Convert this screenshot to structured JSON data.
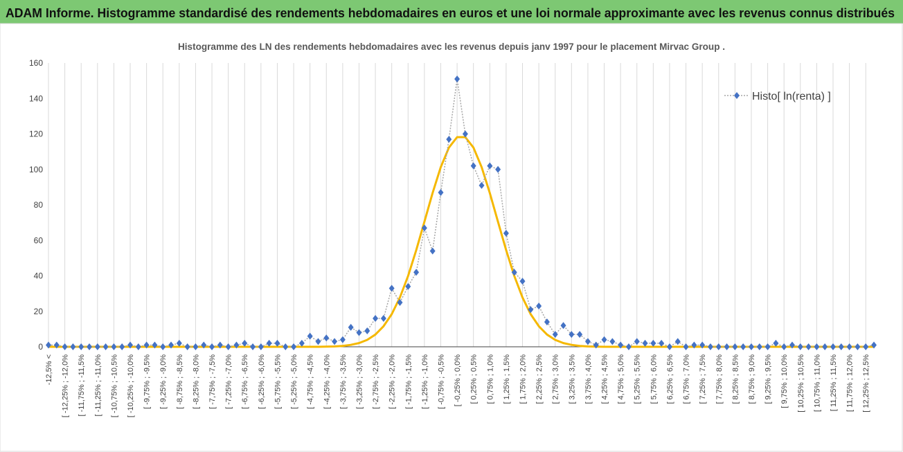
{
  "header": {
    "title": "ADAM Informe. Histogramme standardisé des rendements hebdomadaires en euros et une loi normale approximante avec les revenus connus distribués"
  },
  "chart_data": {
    "type": "line",
    "title": "Histogramme  des LN des rendements hebdomadaires avec les revenus depuis janv 1997 pour le placement Mirvac Group .",
    "categories": [
      "-12,5% <",
      null,
      "[ -12,25% ; -12,0%",
      null,
      "[ -11,75% ; -11,5%",
      null,
      "[ -11,25% ; -11,0%",
      null,
      "[ -10,75% ; -10,5%",
      null,
      "[ -10,25% ; -10,0%",
      null,
      "[ -9,75% ; -9,5%",
      null,
      "[ -9,25% ; -9,0%",
      null,
      "[ -8,75% ; -8,5%",
      null,
      "[ -8,25% ; -8,0%",
      null,
      "[ -7,75% ; -7,5%",
      null,
      "[ -7,25% ; -7,0%",
      null,
      "[ -6,75% ; -6,5%",
      null,
      "[ -6,25% ; -6,0%",
      null,
      "[ -5,75% ; -5,5%",
      null,
      "[ -5,25% ; -5,0%",
      null,
      "[ -4,75% ; -4,5%",
      null,
      "[ -4,25% ; -4,0%",
      null,
      "[ -3,75% ; -3,5%",
      null,
      "[ -3,25% ; -3,0%",
      null,
      "[ -2,75% ; -2,5%",
      null,
      "[ -2,25% ; -2,0%",
      null,
      "[ -1,75% ; -1,5%",
      null,
      "[ -1,25% ; -1,0%",
      null,
      "[ -0,75% ; -0,5%",
      null,
      "[ -0,25% ; 0,0%",
      null,
      "[ 0,25% ; 0,5%",
      null,
      "[ 0,75% ; 1,0%",
      null,
      "[ 1,25% ; 1,5%",
      null,
      "[ 1,75% ; 2,0%",
      null,
      "[ 2,25% ; 2,5%",
      null,
      "[ 2,75% ; 3,0%",
      null,
      "[ 3,25% ; 3,5%",
      null,
      "[ 3,75% ; 4,0%",
      null,
      "[ 4,25% ; 4,5%",
      null,
      "[ 4,75% ; 5,0%",
      null,
      "[ 5,25% ; 5,5%",
      null,
      "[ 5,75% ; 6,0%",
      null,
      "[ 6,25% ; 6,5%",
      null,
      "[ 6,75% ; 7,0%",
      null,
      "[ 7,25% ; 7,5%",
      null,
      "[ 7,75% ; 8,0%",
      null,
      "[ 8,25% ; 8,5%",
      null,
      "[ 8,75% ; 9,0%",
      null,
      "[ 9,25% ; 9,5%",
      null,
      "[ 9,75% ; 10,0%",
      null,
      "[ 10,25% ; 10,5%",
      null,
      "[ 10,75% ; 11,0%",
      null,
      "[ 11,25% ; 11,5%",
      null,
      "[ 11,75% ; 12,0%",
      null,
      "[ 12,25% ; 12,5%",
      null
    ],
    "series": [
      {
        "name": "Histo[ ln(renta) ]",
        "color": "#4472c4",
        "line_color": "#a5a5a5",
        "marker": "diamond",
        "values": [
          1,
          1,
          0,
          0,
          0,
          0,
          0,
          0,
          0,
          0,
          1,
          0,
          1,
          1,
          0,
          1,
          2,
          0,
          0,
          1,
          0,
          1,
          0,
          1,
          2,
          0,
          0,
          2,
          2,
          0,
          0,
          2,
          6,
          3,
          5,
          3,
          4,
          11,
          8,
          9,
          16,
          16,
          33,
          25,
          34,
          42,
          67,
          54,
          87,
          117,
          151,
          120,
          102,
          91,
          102,
          100,
          64,
          42,
          37,
          21,
          23,
          14,
          7,
          12,
          7,
          7,
          3,
          1,
          4,
          3,
          1,
          0,
          3,
          2,
          2,
          2,
          0,
          3,
          0,
          1,
          1,
          0,
          0,
          0,
          0,
          0,
          0,
          0,
          0,
          2,
          0,
          1,
          0,
          0,
          0,
          0,
          0,
          0,
          0,
          0,
          0,
          1
        ]
      },
      {
        "color": "#f5b800",
        "values": [
          0,
          0,
          0,
          0,
          0,
          0,
          0,
          0,
          0,
          0,
          0,
          0,
          0,
          0,
          0,
          0,
          0,
          0,
          0,
          0,
          0,
          0,
          0,
          0,
          0,
          0,
          0,
          0,
          0,
          0,
          0,
          0,
          0,
          0,
          0.1,
          0.2,
          0.5,
          1.1,
          2.1,
          3.9,
          6.9,
          11.6,
          18.4,
          27.8,
          39.9,
          54.5,
          70.5,
          86.7,
          101.3,
          112.3,
          118.2,
          118.2,
          112.3,
          101.3,
          86.7,
          70.5,
          54.5,
          39.9,
          27.8,
          18.4,
          11.6,
          6.9,
          3.9,
          2.1,
          1.1,
          0.5,
          0.2,
          0.1,
          0,
          0,
          0,
          0,
          0,
          0,
          0,
          0,
          0,
          0,
          0,
          0,
          0,
          0,
          0,
          0,
          0,
          0,
          0,
          0,
          0,
          0,
          0,
          0,
          0,
          0,
          0,
          0,
          0,
          0,
          0,
          0,
          0,
          0
        ]
      }
    ],
    "ylim": [
      0,
      160
    ],
    "yticks": [
      0,
      20,
      40,
      60,
      80,
      100,
      120,
      140,
      160
    ],
    "vertical_grid": true,
    "legend": "upper right"
  }
}
